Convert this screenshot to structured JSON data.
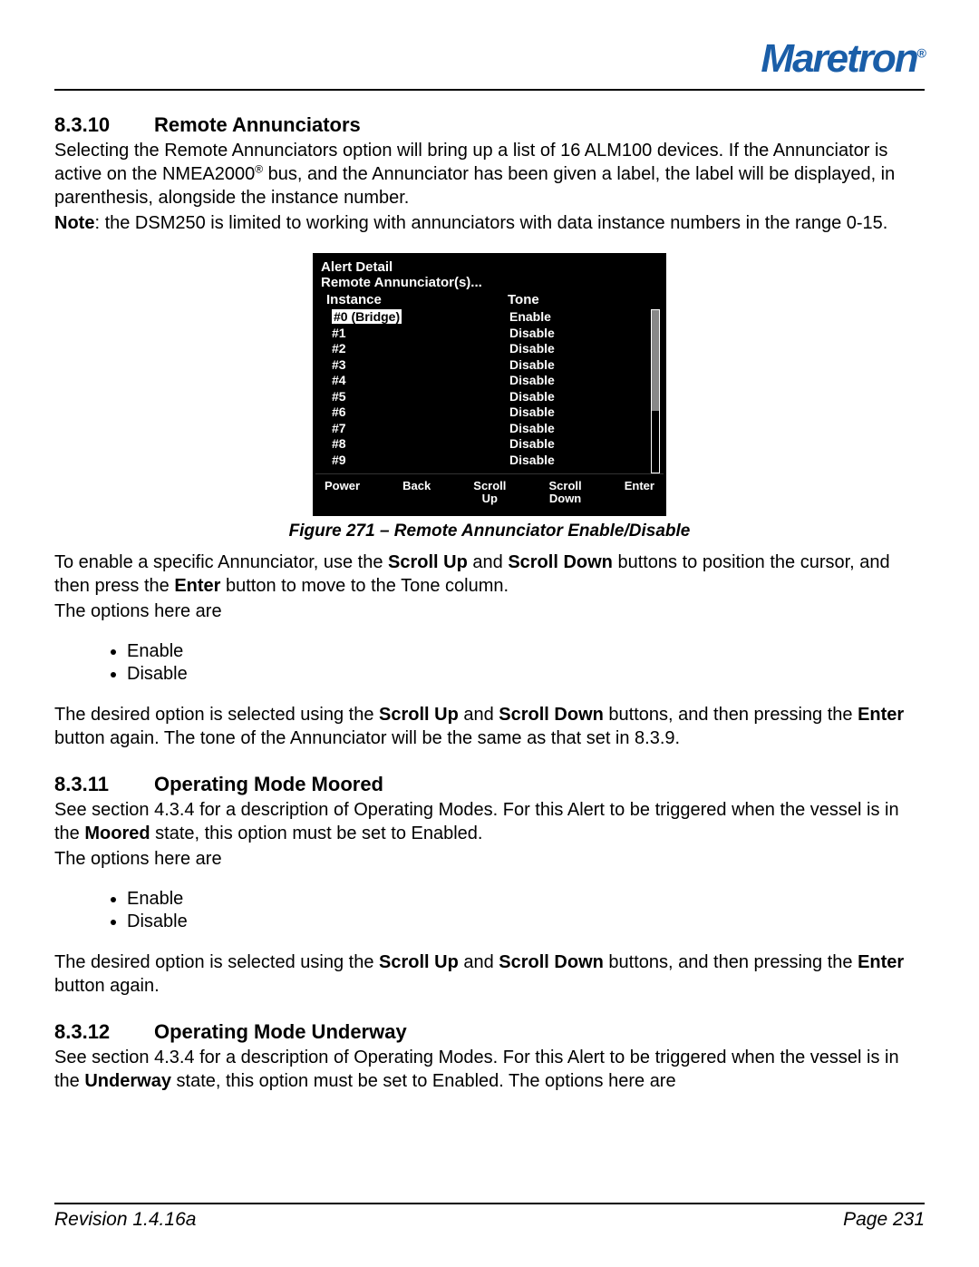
{
  "brand": {
    "name": "Maretron",
    "color": "#1a5ea8",
    "reg": "®"
  },
  "sections": {
    "s1": {
      "num": "8.3.10",
      "title": "Remote Annunciators",
      "p1a": "Selecting the Remote Annunciators option will bring up a list of 16 ALM100 devices. If the Annunciator is active on the NMEA2000",
      "p1sup": "®",
      "p1b": " bus, and the Annunciator has been given a label, the label will be displayed, in parenthesis, alongside the instance number.",
      "note_label": "Note",
      "note_text": ": the DSM250 is limited to working with annunciators with data instance numbers in the range 0-15.",
      "p2a": "To enable a specific Annunciator, use the ",
      "p2b1": "Scroll Up",
      "p2c": " and ",
      "p2b2": "Scroll Down",
      "p2d": " buttons to position the cursor, and then press the ",
      "p2b3": "Enter",
      "p2e": " button to move to the Tone column.",
      "opts_intro": "The options here are",
      "opt1": "Enable",
      "opt2": "Disable",
      "p3a": "The desired option is selected using the ",
      "p3b1": "Scroll Up",
      "p3c": " and ",
      "p3b2": "Scroll Down",
      "p3d": " buttons, and then pressing the ",
      "p3b3": "Enter",
      "p3e": " button again. The tone of the Annunciator will be the same as that set in 8.3.9."
    },
    "s2": {
      "num": "8.3.11",
      "title": "Operating Mode Moored",
      "p1a": "See section 4.3.4 for a description of Operating Modes. For this Alert to be triggered when the vessel is in the ",
      "p1b": "Moored",
      "p1c": " state, this option must be set to Enabled.",
      "opts_intro": "The options here are",
      "opt1": "Enable",
      "opt2": "Disable",
      "p2a": "The desired option is selected using the ",
      "p2b1": "Scroll Up",
      "p2c": " and ",
      "p2b2": "Scroll Down",
      "p2d": " buttons, and then pressing the ",
      "p2b3": "Enter",
      "p2e": " button again."
    },
    "s3": {
      "num": "8.3.12",
      "title": "Operating Mode Underway",
      "p1a": "See section 4.3.4 for a description of Operating Modes. For this Alert to be triggered when the vessel is in the ",
      "p1b": "Underway",
      "p1c": " state, this option must be set to Enabled. The options here are"
    }
  },
  "figure": {
    "title": "Alert Detail",
    "subtitle": "Remote Annunciator(s)...",
    "col1": "Instance",
    "col2": "Tone",
    "rows": [
      {
        "inst": "#0 (Bridge)",
        "tone": "Enable",
        "sel": true
      },
      {
        "inst": "#1",
        "tone": "Disable",
        "sel": false
      },
      {
        "inst": "#2",
        "tone": "Disable",
        "sel": false
      },
      {
        "inst": "#3",
        "tone": "Disable",
        "sel": false
      },
      {
        "inst": "#4",
        "tone": "Disable",
        "sel": false
      },
      {
        "inst": "#5",
        "tone": "Disable",
        "sel": false
      },
      {
        "inst": "#6",
        "tone": "Disable",
        "sel": false
      },
      {
        "inst": "#7",
        "tone": "Disable",
        "sel": false
      },
      {
        "inst": "#8",
        "tone": "Disable",
        "sel": false
      },
      {
        "inst": "#9",
        "tone": "Disable",
        "sel": false
      }
    ],
    "buttons": {
      "b1": "Power",
      "b2": "Back",
      "b3a": "Scroll",
      "b3b": "Up",
      "b4a": "Scroll",
      "b4b": "Down",
      "b5": "Enter"
    },
    "scroll": {
      "thumb_top_pct": 0,
      "thumb_height_pct": 62
    },
    "caption": "Figure 271 – Remote Annunciator Enable/Disable"
  },
  "footer": {
    "left": "Revision 1.4.16a",
    "right": "Page 231"
  }
}
